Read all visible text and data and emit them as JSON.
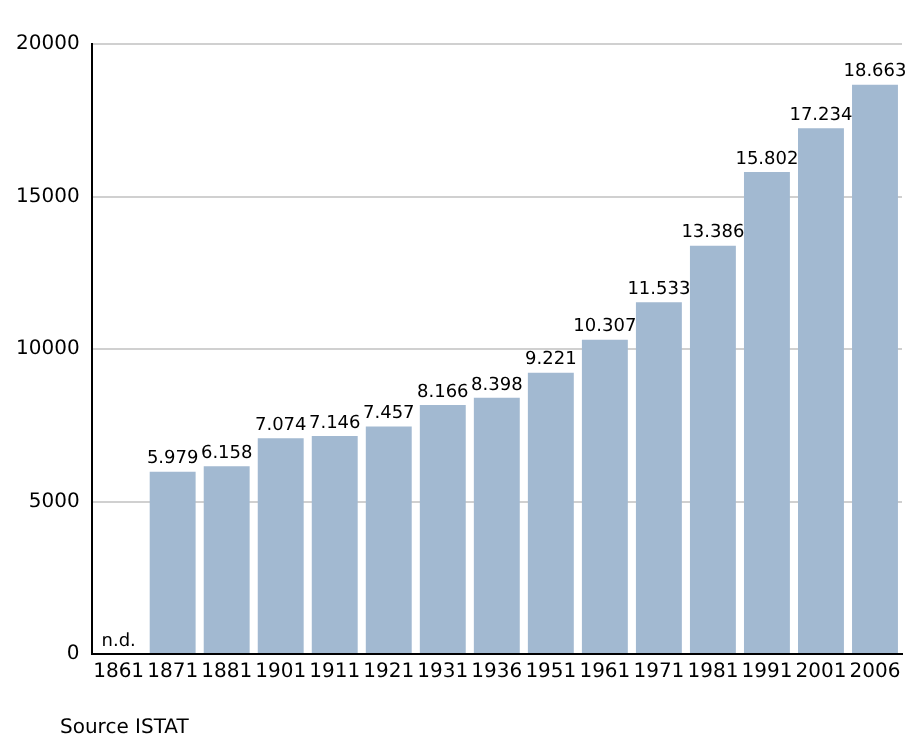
{
  "chart_data": {
    "type": "bar",
    "categories": [
      "1861",
      "1871",
      "1881",
      "1901",
      "1911",
      "1921",
      "1931",
      "1936",
      "1951",
      "1961",
      "1971",
      "1981",
      "1991",
      "2001",
      "2006"
    ],
    "values": [
      null,
      5979,
      6158,
      7074,
      7146,
      7457,
      8166,
      8398,
      9221,
      10307,
      11533,
      13386,
      15802,
      17234,
      18663
    ],
    "value_labels": [
      "n.d.",
      "5.979",
      "6.158",
      "7.074",
      "7.146",
      "7.457",
      "8.166",
      "8.398",
      "9.221",
      "10.307",
      "11.533",
      "13.386",
      "15.802",
      "17.234",
      "18.663"
    ],
    "color": "#a2b9d1",
    "ylim": [
      0,
      20000
    ],
    "yticks": [
      0,
      5000,
      10000,
      15000,
      20000
    ],
    "grid": "y",
    "legend": false,
    "annotations": [
      "Source ISTAT"
    ]
  }
}
